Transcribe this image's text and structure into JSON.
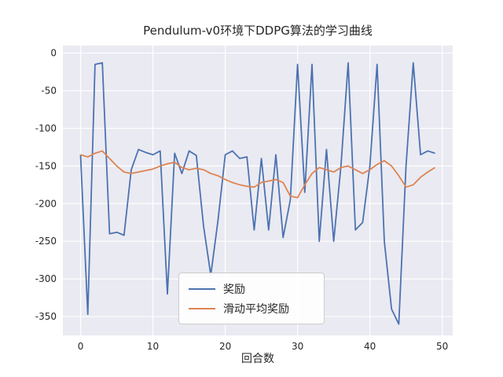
{
  "chart_data": {
    "type": "line",
    "title": "Pendulum-v0环境下DDPG算法的学习曲线",
    "xlabel": "回合数",
    "ylabel": "",
    "x": [
      0,
      1,
      2,
      3,
      4,
      5,
      6,
      7,
      8,
      9,
      10,
      11,
      12,
      13,
      14,
      15,
      16,
      17,
      18,
      19,
      20,
      21,
      22,
      23,
      24,
      25,
      26,
      27,
      28,
      29,
      30,
      31,
      32,
      33,
      34,
      35,
      36,
      37,
      38,
      39,
      40,
      41,
      42,
      43,
      44,
      45,
      46,
      47,
      48,
      49
    ],
    "series": [
      {
        "name": "奖励",
        "color": "#4C72B0",
        "values": [
          -135,
          -347,
          -15,
          -13,
          -240,
          -238,
          -242,
          -155,
          -128,
          -132,
          -135,
          -130,
          -320,
          -133,
          -160,
          -130,
          -136,
          -230,
          -295,
          -222,
          -135,
          -130,
          -140,
          -138,
          -235,
          -140,
          -235,
          -135,
          -245,
          -195,
          -15,
          -185,
          -15,
          -250,
          -128,
          -250,
          -150,
          -13,
          -235,
          -225,
          -150,
          -15,
          -250,
          -340,
          -360,
          -150,
          -13,
          -135,
          -130,
          -133
        ]
      },
      {
        "name": "滑动平均奖励",
        "color": "#DD8452",
        "values": [
          -135,
          -138,
          -133,
          -130,
          -140,
          -150,
          -158,
          -160,
          -158,
          -156,
          -154,
          -150,
          -147,
          -145,
          -152,
          -155,
          -153,
          -155,
          -160,
          -163,
          -168,
          -172,
          -175,
          -177,
          -178,
          -172,
          -170,
          -168,
          -172,
          -190,
          -192,
          -175,
          -160,
          -152,
          -155,
          -158,
          -152,
          -150,
          -155,
          -160,
          -155,
          -148,
          -143,
          -150,
          -163,
          -178,
          -175,
          -165,
          -158,
          -152
        ]
      }
    ],
    "xlim": [
      -2.45,
      51.45
    ],
    "ylim": [
      -375,
      10
    ],
    "xticks": [
      0,
      10,
      20,
      30,
      40,
      50
    ],
    "yticks": [
      0,
      -50,
      -100,
      -150,
      -200,
      -250,
      -300,
      -350
    ],
    "grid": true,
    "legend_position": "lower center-left",
    "plot_bg": "#eaeaf2",
    "grid_color": "#ffffff",
    "tick_color": "#262626"
  }
}
